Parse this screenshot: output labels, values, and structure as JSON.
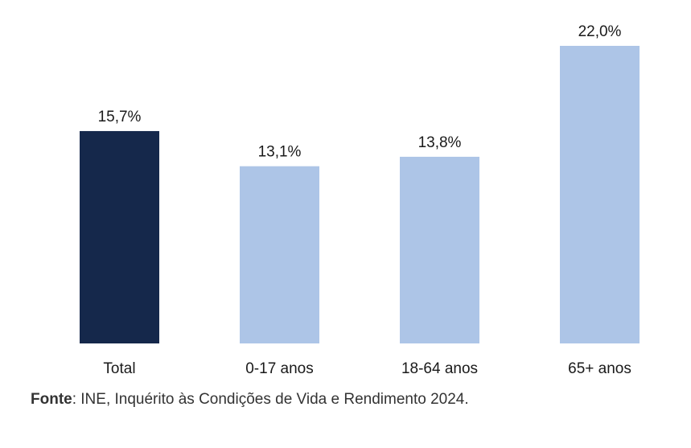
{
  "chart_data": {
    "type": "bar",
    "categories": [
      "Total",
      "0-17 anos",
      "18-64 anos",
      "65+ anos"
    ],
    "values": [
      15.7,
      13.1,
      13.8,
      22.0
    ],
    "value_labels": [
      "15,7%",
      "13,1%",
      "13,8%",
      "22,0%"
    ],
    "bar_colors": [
      "#15284b",
      "#adc5e7",
      "#adc5e7",
      "#adc5e7"
    ],
    "title": "",
    "xlabel": "",
    "ylabel": "",
    "ylim": [
      0,
      22
    ],
    "grid": false,
    "legend": "none"
  },
  "source": {
    "label": "Fonte",
    "text": ": INE, Inquérito às Condições de Vida e Rendimento 2024."
  }
}
